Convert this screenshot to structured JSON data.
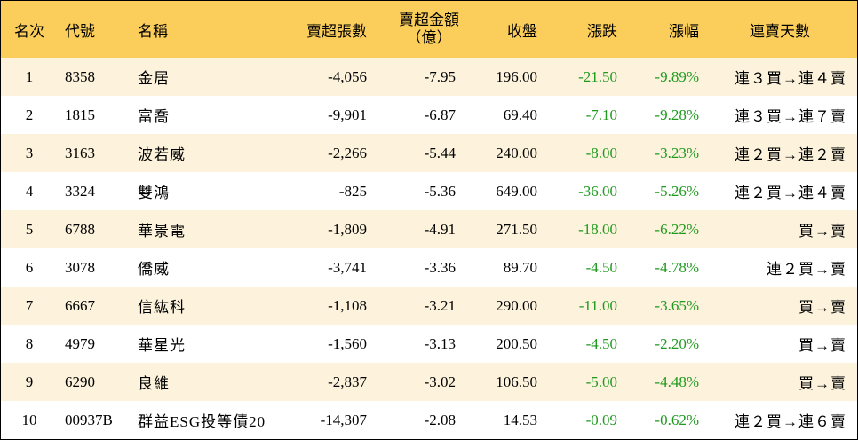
{
  "header": {
    "rank": "名次",
    "code": "代號",
    "name": "名稱",
    "net_sell_sheets": "賣超張數",
    "net_sell_amount_line1": "賣超金額",
    "net_sell_amount_line2": "（億）",
    "close": "收盤",
    "change": "漲跌",
    "change_pct": "漲幅",
    "consecutive_days": "連賣天數"
  },
  "rows": [
    {
      "rank": "1",
      "code": "8358",
      "name": "金居",
      "sheets": "-4,056",
      "amount": "-7.95",
      "close": "196.00",
      "change": "-21.50",
      "pct": "-9.89%",
      "days": "連３買→連４賣"
    },
    {
      "rank": "2",
      "code": "1815",
      "name": "富喬",
      "sheets": "-9,901",
      "amount": "-6.87",
      "close": "69.40",
      "change": "-7.10",
      "pct": "-9.28%",
      "days": "連３買→連７賣"
    },
    {
      "rank": "3",
      "code": "3163",
      "name": "波若威",
      "sheets": "-2,266",
      "amount": "-5.44",
      "close": "240.00",
      "change": "-8.00",
      "pct": "-3.23%",
      "days": "連２買→連２賣"
    },
    {
      "rank": "4",
      "code": "3324",
      "name": "雙鴻",
      "sheets": "-825",
      "amount": "-5.36",
      "close": "649.00",
      "change": "-36.00",
      "pct": "-5.26%",
      "days": "連２買→連４賣"
    },
    {
      "rank": "5",
      "code": "6788",
      "name": "華景電",
      "sheets": "-1,809",
      "amount": "-4.91",
      "close": "271.50",
      "change": "-18.00",
      "pct": "-6.22%",
      "days": "買→賣"
    },
    {
      "rank": "6",
      "code": "3078",
      "name": "僑威",
      "sheets": "-3,741",
      "amount": "-3.36",
      "close": "89.70",
      "change": "-4.50",
      "pct": "-4.78%",
      "days": "連２買→賣"
    },
    {
      "rank": "7",
      "code": "6667",
      "name": "信紘科",
      "sheets": "-1,108",
      "amount": "-3.21",
      "close": "290.00",
      "change": "-11.00",
      "pct": "-3.65%",
      "days": "買→賣"
    },
    {
      "rank": "8",
      "code": "4979",
      "name": "華星光",
      "sheets": "-1,560",
      "amount": "-3.13",
      "close": "200.50",
      "change": "-4.50",
      "pct": "-2.20%",
      "days": "買→賣"
    },
    {
      "rank": "9",
      "code": "6290",
      "name": "良維",
      "sheets": "-2,837",
      "amount": "-3.02",
      "close": "106.50",
      "change": "-5.00",
      "pct": "-4.48%",
      "days": "買→賣"
    },
    {
      "rank": "10",
      "code": "00937B",
      "name": "群益ESG投等債20",
      "sheets": "-14,307",
      "amount": "-2.08",
      "close": "14.53",
      "change": "-0.09",
      "pct": "-0.62%",
      "days": "連２買→連６賣"
    }
  ],
  "colors": {
    "header_bg": "#fbce5c",
    "stripe_bg": "#fdf3dc",
    "down_green": "#1f9a1f"
  }
}
